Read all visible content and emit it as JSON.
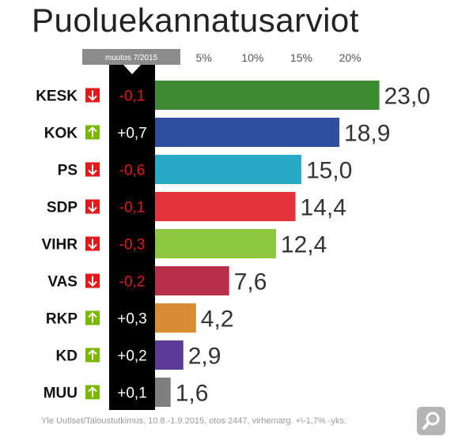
{
  "title": "Puoluekannatusarviot",
  "source_note": "Yle Uutiset/Taloustutkimus, 10.8.-1.9.2015, otos 2447, virhemarg. +\\-1,7% -yks.",
  "colors": {
    "change_up": "#7ab800",
    "change_down": "#e01a1a",
    "change_column": "#000000",
    "header_tab": "#8c8c8c"
  },
  "icons": {
    "up": "arrow-up-icon",
    "down": "arrow-down-icon",
    "zoom": "magnifier-icon"
  },
  "chart_data": {
    "type": "bar",
    "orientation": "horizontal",
    "title": "Puoluekannatusarviot",
    "change_header": "muutos 7/2015",
    "x_ticks": [
      "5%",
      "10%",
      "15%",
      "20%"
    ],
    "x_tick_values": [
      5,
      10,
      15,
      20
    ],
    "xlim": [
      0,
      23.5
    ],
    "categories": [
      "KESK",
      "KOK",
      "PS",
      "SDP",
      "VIHR",
      "VAS",
      "RKP",
      "KD",
      "MUU"
    ],
    "values": [
      23.0,
      18.9,
      15.0,
      14.4,
      12.4,
      7.6,
      4.2,
      2.9,
      1.6
    ],
    "value_labels": [
      "23,0",
      "18,9",
      "15,0",
      "14,4",
      "12,4",
      "7,6",
      "4,2",
      "2,9",
      "1,6"
    ],
    "changes": [
      "-0,1",
      "+0,7",
      "-0,6",
      "-0,1",
      "-0,3",
      "-0,2",
      "+0,3",
      "+0,2",
      "+0,1"
    ],
    "change_directions": [
      "down",
      "up",
      "down",
      "down",
      "down",
      "down",
      "up",
      "up",
      "up"
    ],
    "bar_colors": [
      "#3e8a32",
      "#2f4f9e",
      "#27aac6",
      "#e5333b",
      "#8dc63f",
      "#b8304a",
      "#d88d35",
      "#5e3a98",
      "#7f7f7f"
    ]
  }
}
